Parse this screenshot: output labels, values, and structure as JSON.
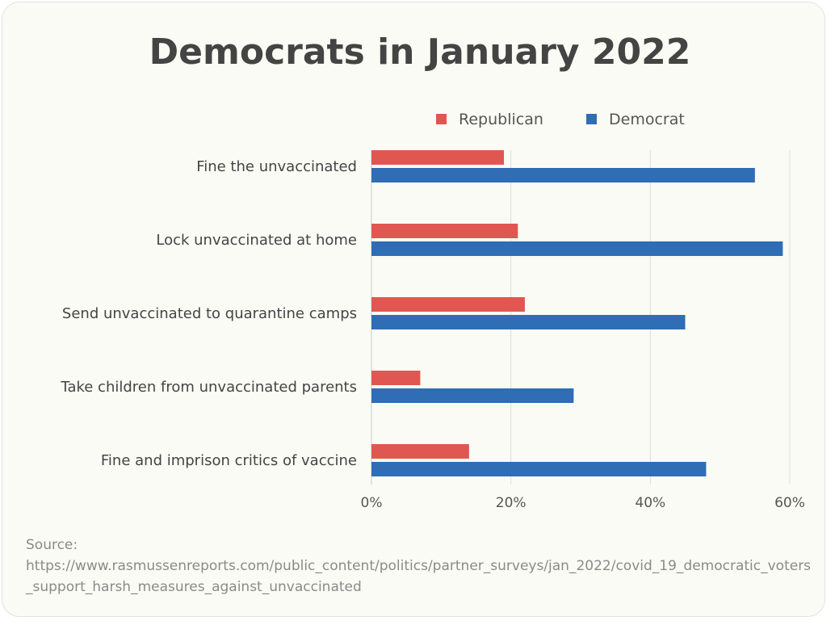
{
  "chart_data": {
    "type": "bar",
    "orientation": "horizontal",
    "title": "Democrats in January 2022",
    "categories": [
      "Fine the unvaccinated",
      "Lock unvaccinated at home",
      "Send unvaccinated to quarantine camps",
      "Take children from unvaccinated parents",
      "Fine and imprison critics of vaccine"
    ],
    "series": [
      {
        "name": "Republican",
        "color": "#e05752",
        "values": [
          19,
          21,
          22,
          7,
          14
        ]
      },
      {
        "name": "Democrat",
        "color": "#2f6db5",
        "values": [
          55,
          59,
          45,
          29,
          48
        ]
      }
    ],
    "xlim": [
      0,
      60
    ],
    "xticks": [
      "0%",
      "20%",
      "40%",
      "60%"
    ],
    "tick_values": [
      0,
      20,
      40,
      60
    ],
    "grid": true,
    "legend_position": "top-right"
  },
  "source": {
    "label": "Source:",
    "url": "https://www.rasmussenreports.com/public_content/politics/partner_surveys/jan_2022/covid_19_democratic_voters_support_harsh_measures_against_unvaccinated"
  }
}
